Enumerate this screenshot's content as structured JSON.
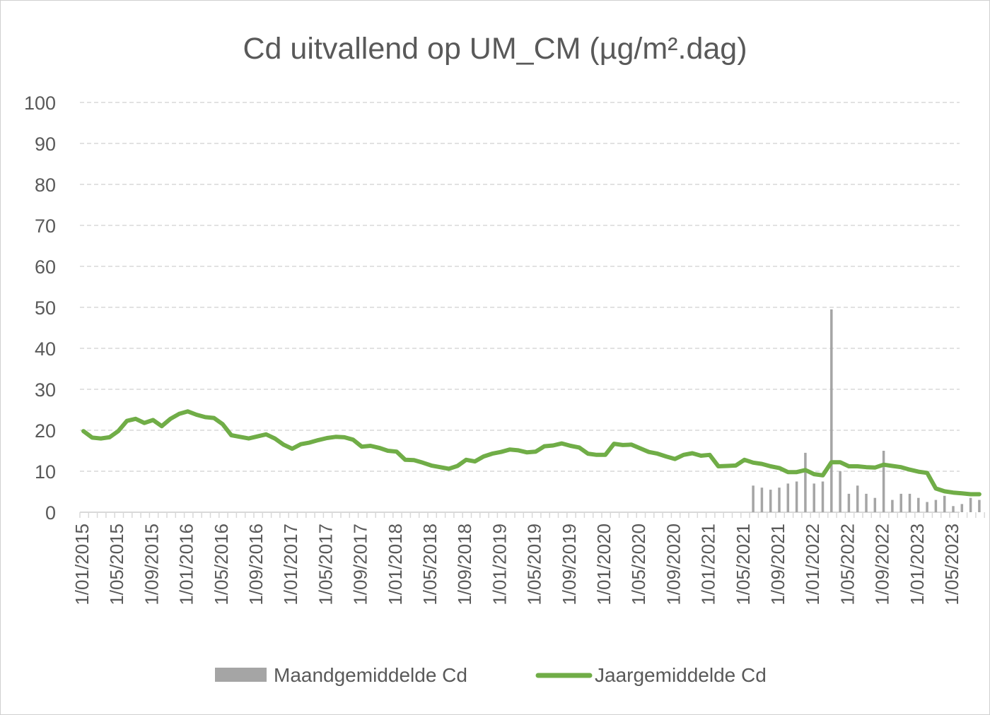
{
  "chart_data": {
    "type": "bar+line",
    "title": "Cd uitvallend op UM_CM (µg/m².dag)",
    "xlabel": "",
    "ylabel": "",
    "ylim": [
      0,
      100
    ],
    "yticks": [
      0,
      10,
      20,
      30,
      40,
      50,
      60,
      70,
      80,
      90,
      100
    ],
    "grid": "horizontal dashed",
    "legend_position": "bottom",
    "x_start": "1/01/2015",
    "x_end": "1/09/2023",
    "xtick_labels": [
      "1/01/2015",
      "1/05/2015",
      "1/09/2015",
      "1/01/2016",
      "1/05/2016",
      "1/09/2016",
      "1/01/2017",
      "1/05/2017",
      "1/09/2017",
      "1/01/2018",
      "1/05/2018",
      "1/09/2018",
      "1/01/2019",
      "1/05/2019",
      "1/09/2019",
      "1/01/2020",
      "1/05/2020",
      "1/09/2020",
      "1/01/2021",
      "1/05/2021",
      "1/09/2021",
      "1/01/2022",
      "1/05/2022",
      "1/09/2022",
      "1/01/2023",
      "1/05/2023"
    ],
    "colors": {
      "bars": "#a5a5a5",
      "line": "#70ad47",
      "grid": "#d9d9d9",
      "text": "#595959"
    },
    "series": [
      {
        "name": "Maandgemiddelde Cd",
        "kind": "bar",
        "points": [
          {
            "date": "2021-06",
            "value": 6.5
          },
          {
            "date": "2021-07",
            "value": 6.0
          },
          {
            "date": "2021-08",
            "value": 5.5
          },
          {
            "date": "2021-09",
            "value": 6.0
          },
          {
            "date": "2021-10",
            "value": 7.0
          },
          {
            "date": "2021-11",
            "value": 7.5
          },
          {
            "date": "2021-12",
            "value": 14.5
          },
          {
            "date": "2022-01",
            "value": 7.0
          },
          {
            "date": "2022-02",
            "value": 7.5
          },
          {
            "date": "2022-03",
            "value": 49.5
          },
          {
            "date": "2022-04",
            "value": 10.0
          },
          {
            "date": "2022-05",
            "value": 4.5
          },
          {
            "date": "2022-06",
            "value": 6.5
          },
          {
            "date": "2022-07",
            "value": 4.5
          },
          {
            "date": "2022-08",
            "value": 3.5
          },
          {
            "date": "2022-09",
            "value": 15.0
          },
          {
            "date": "2022-10",
            "value": 3.0
          },
          {
            "date": "2022-11",
            "value": 4.5
          },
          {
            "date": "2022-12",
            "value": 4.5
          },
          {
            "date": "2023-01",
            "value": 3.5
          },
          {
            "date": "2023-02",
            "value": 2.5
          },
          {
            "date": "2023-03",
            "value": 3.0
          },
          {
            "date": "2023-04",
            "value": 4.0
          },
          {
            "date": "2023-05",
            "value": 1.5
          },
          {
            "date": "2023-06",
            "value": 2.0
          },
          {
            "date": "2023-07",
            "value": 3.5
          },
          {
            "date": "2023-08",
            "value": 3.0
          }
        ]
      },
      {
        "name": "Jaargemiddelde Cd",
        "kind": "line",
        "points": [
          {
            "date": "2015-01",
            "value": 19.8
          },
          {
            "date": "2015-02",
            "value": 18.2
          },
          {
            "date": "2015-03",
            "value": 18.0
          },
          {
            "date": "2015-04",
            "value": 18.3
          },
          {
            "date": "2015-05",
            "value": 19.8
          },
          {
            "date": "2015-06",
            "value": 22.3
          },
          {
            "date": "2015-07",
            "value": 22.8
          },
          {
            "date": "2015-08",
            "value": 21.8
          },
          {
            "date": "2015-09",
            "value": 22.5
          },
          {
            "date": "2015-10",
            "value": 21.0
          },
          {
            "date": "2015-11",
            "value": 22.8
          },
          {
            "date": "2015-12",
            "value": 24.0
          },
          {
            "date": "2016-01",
            "value": 24.6
          },
          {
            "date": "2016-02",
            "value": 23.8
          },
          {
            "date": "2016-03",
            "value": 23.2
          },
          {
            "date": "2016-04",
            "value": 23.0
          },
          {
            "date": "2016-05",
            "value": 21.5
          },
          {
            "date": "2016-06",
            "value": 18.8
          },
          {
            "date": "2016-07",
            "value": 18.4
          },
          {
            "date": "2016-08",
            "value": 18.0
          },
          {
            "date": "2016-09",
            "value": 18.5
          },
          {
            "date": "2016-10",
            "value": 19.0
          },
          {
            "date": "2016-11",
            "value": 18.0
          },
          {
            "date": "2016-12",
            "value": 16.5
          },
          {
            "date": "2017-01",
            "value": 15.5
          },
          {
            "date": "2017-02",
            "value": 16.6
          },
          {
            "date": "2017-03",
            "value": 17.0
          },
          {
            "date": "2017-04",
            "value": 17.6
          },
          {
            "date": "2017-05",
            "value": 18.1
          },
          {
            "date": "2017-06",
            "value": 18.4
          },
          {
            "date": "2017-07",
            "value": 18.3
          },
          {
            "date": "2017-08",
            "value": 17.7
          },
          {
            "date": "2017-09",
            "value": 16.0
          },
          {
            "date": "2017-10",
            "value": 16.2
          },
          {
            "date": "2017-11",
            "value": 15.7
          },
          {
            "date": "2017-12",
            "value": 15.0
          },
          {
            "date": "2018-01",
            "value": 14.8
          },
          {
            "date": "2018-02",
            "value": 12.8
          },
          {
            "date": "2018-03",
            "value": 12.7
          },
          {
            "date": "2018-04",
            "value": 12.1
          },
          {
            "date": "2018-05",
            "value": 11.4
          },
          {
            "date": "2018-06",
            "value": 11.0
          },
          {
            "date": "2018-07",
            "value": 10.6
          },
          {
            "date": "2018-08",
            "value": 11.3
          },
          {
            "date": "2018-09",
            "value": 12.8
          },
          {
            "date": "2018-10",
            "value": 12.4
          },
          {
            "date": "2018-11",
            "value": 13.6
          },
          {
            "date": "2018-12",
            "value": 14.3
          },
          {
            "date": "2019-01",
            "value": 14.7
          },
          {
            "date": "2019-02",
            "value": 15.3
          },
          {
            "date": "2019-03",
            "value": 15.1
          },
          {
            "date": "2019-04",
            "value": 14.6
          },
          {
            "date": "2019-05",
            "value": 14.8
          },
          {
            "date": "2019-06",
            "value": 16.1
          },
          {
            "date": "2019-07",
            "value": 16.3
          },
          {
            "date": "2019-08",
            "value": 16.8
          },
          {
            "date": "2019-09",
            "value": 16.2
          },
          {
            "date": "2019-10",
            "value": 15.8
          },
          {
            "date": "2019-11",
            "value": 14.3
          },
          {
            "date": "2019-12",
            "value": 14.0
          },
          {
            "date": "2020-01",
            "value": 14.0
          },
          {
            "date": "2020-02",
            "value": 16.7
          },
          {
            "date": "2020-03",
            "value": 16.4
          },
          {
            "date": "2020-04",
            "value": 16.5
          },
          {
            "date": "2020-05",
            "value": 15.6
          },
          {
            "date": "2020-06",
            "value": 14.7
          },
          {
            "date": "2020-07",
            "value": 14.3
          },
          {
            "date": "2020-08",
            "value": 13.6
          },
          {
            "date": "2020-09",
            "value": 13.0
          },
          {
            "date": "2020-10",
            "value": 14.0
          },
          {
            "date": "2020-11",
            "value": 14.4
          },
          {
            "date": "2020-12",
            "value": 13.8
          },
          {
            "date": "2021-01",
            "value": 14.0
          },
          {
            "date": "2021-02",
            "value": 11.2
          },
          {
            "date": "2021-03",
            "value": 11.3
          },
          {
            "date": "2021-04",
            "value": 11.4
          },
          {
            "date": "2021-05",
            "value": 12.8
          },
          {
            "date": "2021-06",
            "value": 12.1
          },
          {
            "date": "2021-07",
            "value": 11.8
          },
          {
            "date": "2021-08",
            "value": 11.2
          },
          {
            "date": "2021-09",
            "value": 10.8
          },
          {
            "date": "2021-10",
            "value": 9.8
          },
          {
            "date": "2021-11",
            "value": 9.8
          },
          {
            "date": "2021-12",
            "value": 10.3
          },
          {
            "date": "2022-01",
            "value": 9.3
          },
          {
            "date": "2022-02",
            "value": 9.0
          },
          {
            "date": "2022-03",
            "value": 12.2
          },
          {
            "date": "2022-04",
            "value": 12.2
          },
          {
            "date": "2022-05",
            "value": 11.2
          },
          {
            "date": "2022-06",
            "value": 11.2
          },
          {
            "date": "2022-07",
            "value": 11.0
          },
          {
            "date": "2022-08",
            "value": 10.9
          },
          {
            "date": "2022-09",
            "value": 11.6
          },
          {
            "date": "2022-10",
            "value": 11.3
          },
          {
            "date": "2022-11",
            "value": 11.0
          },
          {
            "date": "2022-12",
            "value": 10.4
          },
          {
            "date": "2023-01",
            "value": 9.9
          },
          {
            "date": "2023-02",
            "value": 9.6
          },
          {
            "date": "2023-03",
            "value": 5.8
          },
          {
            "date": "2023-04",
            "value": 5.1
          },
          {
            "date": "2023-05",
            "value": 4.8
          },
          {
            "date": "2023-06",
            "value": 4.6
          },
          {
            "date": "2023-07",
            "value": 4.4
          },
          {
            "date": "2023-08",
            "value": 4.4
          }
        ]
      }
    ]
  }
}
